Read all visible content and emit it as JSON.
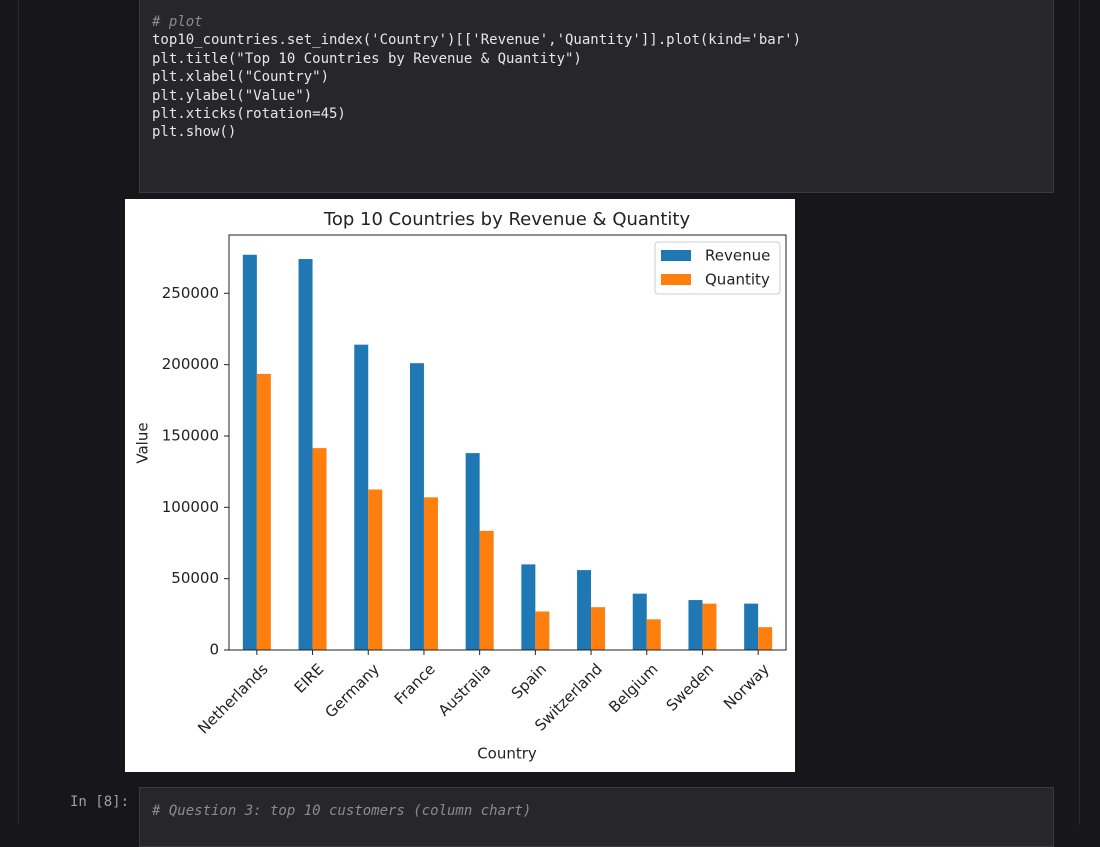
{
  "code_cell": {
    "lines": [
      "# plot",
      "top10_countries.set_index('Country')[['Revenue','Quantity']].plot(kind='bar')",
      "plt.title(\"Top 10 Countries by Revenue & Quantity\")",
      "plt.xlabel(\"Country\")",
      "plt.ylabel(\"Value\")",
      "plt.xticks(rotation=45)",
      "plt.show()"
    ]
  },
  "next_cell": {
    "prompt": "In [8]:",
    "lines": [
      "# Question 3: top 10 customers (column chart)"
    ]
  },
  "chart_data": {
    "type": "bar",
    "title": "Top 10 Countries by Revenue & Quantity",
    "x_label": "Country",
    "y_label": "Value",
    "categories": [
      "Netherlands",
      "EIRE",
      "Germany",
      "France",
      "Australia",
      "Spain",
      "Switzerland",
      "Belgium",
      "Sweden",
      "Norway"
    ],
    "series": [
      {
        "name": "Revenue",
        "color": "#1f77b4",
        "values": [
          277000,
          274000,
          214000,
          201000,
          138000,
          60000,
          56000,
          39500,
          35000,
          32500
        ]
      },
      {
        "name": "Quantity",
        "color": "#ff7f0e",
        "values": [
          193500,
          141500,
          112500,
          107000,
          83500,
          27000,
          30000,
          21500,
          32500,
          16000
        ]
      }
    ],
    "ylim": [
      0,
      290850
    ],
    "yticks": [
      0,
      50000,
      100000,
      150000,
      200000,
      250000
    ],
    "legend": "upper right",
    "x_tick_rotation": 45
  }
}
